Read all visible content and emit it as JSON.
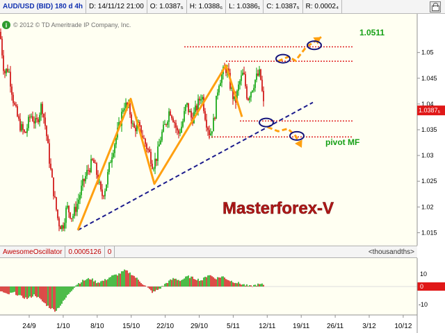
{
  "header": {
    "symbol": "AUD/USD (BID) 180 d 4h",
    "date": "D: 14/11/12 21:00",
    "open": "O: 1.0387₅",
    "high": "H: 1.0388₆",
    "low": "L: 1.0386₁",
    "close": "C: 1.0387₅",
    "range": "R: 0.0002₄",
    "icon": "lock-icon"
  },
  "info_badge": "i",
  "copyright": "© 2012 © TD Ameritrade IP Company, Inc.",
  "watermark": "Masterforex-V",
  "labels": {
    "target": "1.0511",
    "pivot": "pivot MF"
  },
  "price_tag": "1.0387₅",
  "oscillator": {
    "name": "AwesomeOscillator",
    "value": "0.0005126",
    "extra": "0",
    "units": "<thousandths>",
    "ticks": [
      "10",
      "0",
      "-10"
    ]
  },
  "colors": {
    "up": "#00a000",
    "down": "#cc0000",
    "pattern": "#ffa010",
    "trendline": "#1a1a8c",
    "levels": "#e02020",
    "watermark": "#b01818",
    "label": "#16a016",
    "panel": "#fffff2"
  },
  "chart_data": {
    "type": "candlestick",
    "ylim": [
      1.0125,
      1.0575
    ],
    "yticks": [
      1.015,
      1.02,
      1.025,
      1.03,
      1.035,
      1.04,
      1.045,
      1.05
    ],
    "ytick_labels": [
      "1.015",
      "1.02",
      "1.025",
      "1.03",
      "1.035",
      "1.04",
      "1.045",
      "1.05"
    ],
    "xticks": [
      "24/9",
      "1/10",
      "8/10",
      "15/10",
      "22/10",
      "29/10",
      "5/11",
      "12/11",
      "19/11",
      "26/11",
      "3/12",
      "10/12"
    ],
    "price_path": [
      [
        0,
        1.054
      ],
      [
        6,
        1.046
      ],
      [
        12,
        1.047
      ],
      [
        20,
        1.04
      ],
      [
        28,
        1.036
      ],
      [
        36,
        1.034
      ],
      [
        44,
        1.038
      ],
      [
        52,
        1.036
      ],
      [
        60,
        1.04
      ],
      [
        66,
        1.035
      ],
      [
        72,
        1.028
      ],
      [
        78,
        1.022
      ],
      [
        84,
        1.017
      ],
      [
        90,
        1.016
      ],
      [
        96,
        1.02
      ],
      [
        104,
        1.018
      ],
      [
        112,
        1.021
      ],
      [
        118,
        1.024
      ],
      [
        126,
        1.027
      ],
      [
        134,
        1.029
      ],
      [
        140,
        1.026
      ],
      [
        146,
        1.022
      ],
      [
        152,
        1.024
      ],
      [
        160,
        1.03
      ],
      [
        166,
        1.033
      ],
      [
        172,
        1.036
      ],
      [
        178,
        1.04
      ],
      [
        186,
        1.039
      ],
      [
        192,
        1.035
      ],
      [
        198,
        1.036
      ],
      [
        204,
        1.034
      ],
      [
        210,
        1.032
      ],
      [
        216,
        1.03
      ],
      [
        220,
        1.028
      ],
      [
        226,
        1.03
      ],
      [
        232,
        1.034
      ],
      [
        238,
        1.036
      ],
      [
        244,
        1.039
      ],
      [
        250,
        1.037
      ],
      [
        256,
        1.034
      ],
      [
        262,
        1.036
      ],
      [
        268,
        1.04
      ],
      [
        276,
        1.037
      ],
      [
        282,
        1.039
      ],
      [
        290,
        1.042
      ],
      [
        296,
        1.037
      ],
      [
        302,
        1.034
      ],
      [
        308,
        1.037
      ],
      [
        314,
        1.044
      ],
      [
        320,
        1.046
      ],
      [
        326,
        1.047
      ],
      [
        332,
        1.043
      ],
      [
        338,
        1.04
      ],
      [
        344,
        1.044
      ],
      [
        350,
        1.046
      ],
      [
        356,
        1.041
      ],
      [
        362,
        1.043
      ],
      [
        368,
        1.045
      ],
      [
        374,
        1.046
      ],
      [
        378,
        1.041
      ],
      [
        380,
        1.0388
      ]
    ],
    "pattern": [
      [
        112,
        1.0155
      ],
      [
        188,
        1.041
      ],
      [
        222,
        1.0245
      ],
      [
        325,
        1.0475
      ],
      [
        348,
        1.0375
      ]
    ],
    "trendline": [
      [
        112,
        1.0155
      ],
      [
        450,
        1.0403
      ]
    ],
    "levels": [
      {
        "y": 1.0511,
        "x0": 265,
        "x1": 508
      },
      {
        "y": 1.0483,
        "x0": 325,
        "x1": 508
      },
      {
        "y": 1.0367,
        "x0": 345,
        "x1": 508
      },
      {
        "y": 1.0336,
        "x0": 300,
        "x1": 508
      }
    ],
    "ellipses": [
      [
        407,
        1.0488
      ],
      [
        452,
        1.0514
      ],
      [
        383,
        1.0364
      ],
      [
        427,
        1.0338
      ]
    ],
    "projections": [
      {
        "points": [
          [
            400,
            1.0483
          ],
          [
            415,
            1.0492
          ],
          [
            425,
            1.0484
          ],
          [
            440,
            1.051
          ],
          [
            462,
            1.053
          ]
        ]
      },
      {
        "points": [
          [
            385,
            1.0355
          ],
          [
            400,
            1.0347
          ],
          [
            414,
            1.0352
          ],
          [
            425,
            1.0338
          ],
          [
            434,
            1.0315
          ]
        ]
      }
    ],
    "last_price": 1.03875,
    "osc_ylim": [
      -14,
      14
    ],
    "osc_path": [
      [
        0,
        -2
      ],
      [
        10,
        -4
      ],
      [
        20,
        -3
      ],
      [
        30,
        -5
      ],
      [
        40,
        -6
      ],
      [
        50,
        -4
      ],
      [
        60,
        -7
      ],
      [
        70,
        -10
      ],
      [
        80,
        -12
      ],
      [
        90,
        -8
      ],
      [
        100,
        -3
      ],
      [
        110,
        1
      ],
      [
        120,
        3
      ],
      [
        130,
        4
      ],
      [
        140,
        2
      ],
      [
        150,
        3
      ],
      [
        160,
        5
      ],
      [
        170,
        6
      ],
      [
        180,
        8
      ],
      [
        190,
        6
      ],
      [
        200,
        3
      ],
      [
        210,
        0
      ],
      [
        220,
        -3
      ],
      [
        230,
        -1
      ],
      [
        240,
        2
      ],
      [
        250,
        4
      ],
      [
        260,
        3
      ],
      [
        270,
        5
      ],
      [
        280,
        4
      ],
      [
        290,
        3
      ],
      [
        300,
        6
      ],
      [
        310,
        4
      ],
      [
        320,
        5
      ],
      [
        330,
        3
      ],
      [
        340,
        2
      ],
      [
        350,
        1
      ],
      [
        360,
        0
      ],
      [
        370,
        1
      ],
      [
        380,
        1
      ]
    ]
  }
}
